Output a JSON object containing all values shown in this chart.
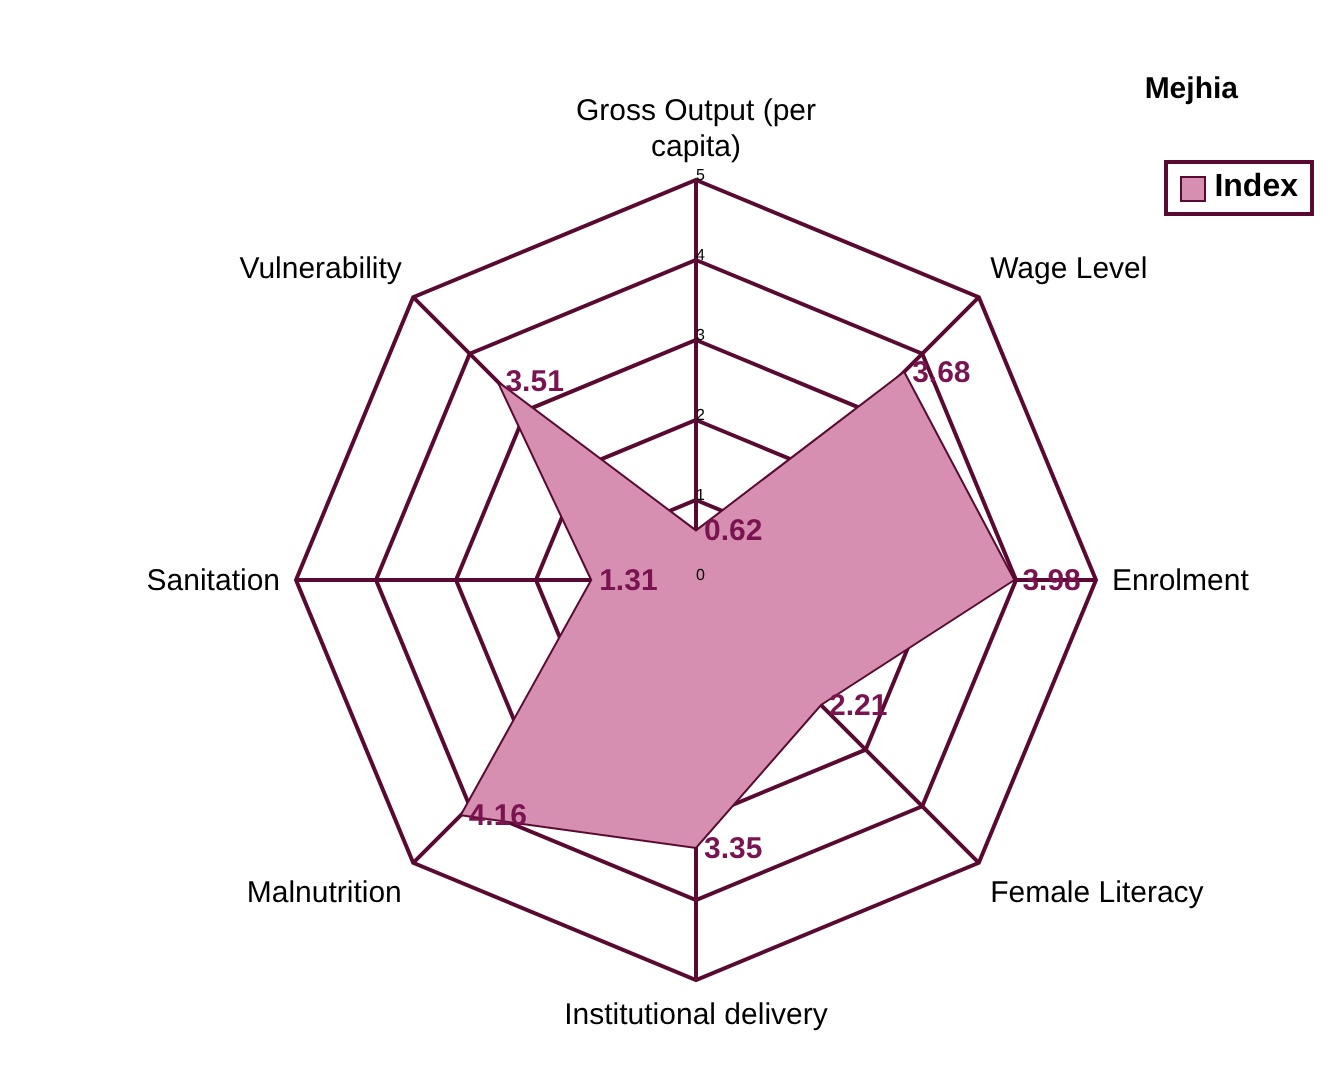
{
  "chart_data": {
    "type": "radar",
    "title": "Mejhia",
    "categories": [
      "Gross Output (per capita)",
      "Wage Level",
      "Enrolment",
      "Female Literacy",
      "Institutional delivery",
      "Malnutrition",
      "Sanitation",
      "Vulnerability"
    ],
    "series": [
      {
        "name": "Index",
        "color": "#d68fb0",
        "values": [
          0.62,
          3.68,
          3.98,
          2.21,
          3.35,
          4.16,
          1.31,
          3.51
        ]
      }
    ],
    "ylim": [
      0,
      5
    ],
    "yticks": [
      0,
      1,
      2,
      3,
      4,
      5
    ],
    "grid": true,
    "legend": "top right",
    "data_labels": true
  }
}
